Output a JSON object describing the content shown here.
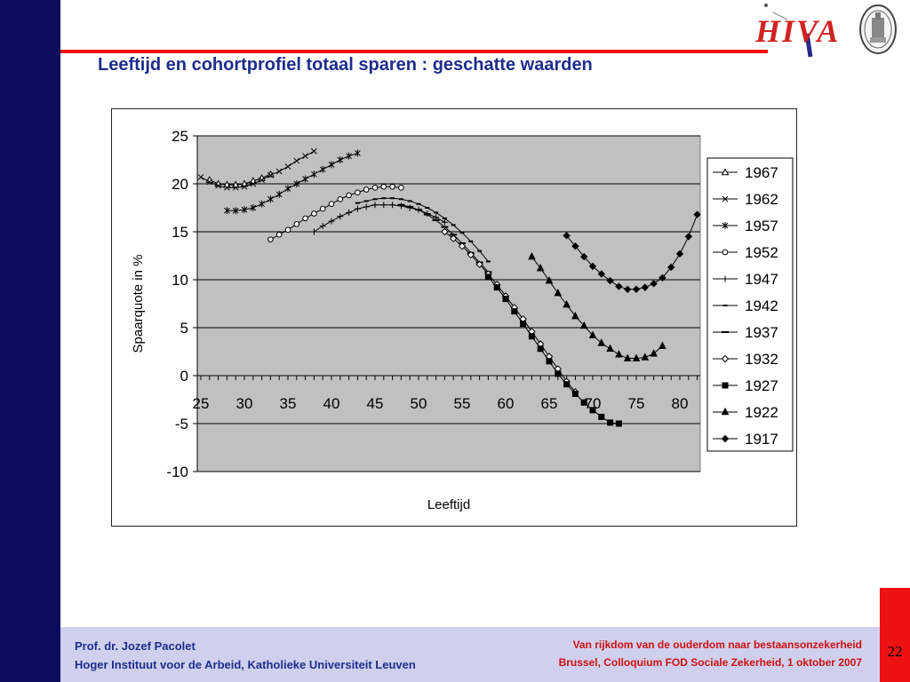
{
  "slide": {
    "title": "Leeftijd en cohortprofiel totaal sparen : geschatte waarden",
    "page_number": "22"
  },
  "logo": {
    "text": "HIVA"
  },
  "footer": {
    "left_line1": "Prof. dr. Jozef Pacolet",
    "left_line2": "Hoger Instituut voor de Arbeid, Katholieke Universiteit Leuven",
    "right_line1": "Van rijkdom van de ouderdom naar bestaansonzekerheid",
    "right_line2": "Brussel, Colloquium FOD Sociale Zekerheid, 1 oktober 2007"
  },
  "colors": {
    "accent_red": "#ee1111",
    "navy": "#0c0c5e",
    "title_blue": "#1e2d8c",
    "plot_bg": "#c0c0c0"
  },
  "chart_data": {
    "type": "line",
    "title": "",
    "xlabel": "Leeftijd",
    "ylabel": "Spaarquote in %",
    "xlim": [
      25,
      81
    ],
    "ylim": [
      -10,
      25
    ],
    "x_ticks": [
      25,
      30,
      35,
      40,
      45,
      50,
      55,
      60,
      65,
      70,
      75,
      80
    ],
    "y_ticks": [
      25,
      20,
      15,
      10,
      5,
      0,
      -5,
      -10
    ],
    "grid": "horizontal",
    "legend_position": "right",
    "series": [
      {
        "name": "1967",
        "marker": "triangle-open",
        "x": [
          26,
          27,
          28,
          29,
          30,
          31,
          32,
          33
        ],
        "y": [
          20.4,
          20.0,
          19.9,
          19.9,
          20.0,
          20.3,
          20.6,
          21.0
        ]
      },
      {
        "name": "1962",
        "marker": "x",
        "x": [
          25,
          26,
          27,
          28,
          29,
          30,
          31,
          32,
          33,
          34,
          35,
          36,
          37,
          38
        ],
        "y": [
          20.7,
          20.2,
          19.8,
          19.6,
          19.6,
          19.7,
          20.0,
          20.4,
          20.9,
          21.3,
          21.8,
          22.4,
          22.9,
          23.4
        ]
      },
      {
        "name": "1957",
        "marker": "asterisk",
        "x": [
          28,
          29,
          30,
          31,
          32,
          33,
          34,
          35,
          36,
          37,
          38,
          39,
          40,
          41,
          42,
          43
        ],
        "y": [
          17.2,
          17.2,
          17.3,
          17.5,
          17.9,
          18.4,
          18.9,
          19.5,
          20.0,
          20.5,
          21.0,
          21.5,
          22.0,
          22.5,
          22.9,
          23.2
        ]
      },
      {
        "name": "1952",
        "marker": "circle-open",
        "x": [
          33,
          34,
          35,
          36,
          37,
          38,
          39,
          40,
          41,
          42,
          43,
          44,
          45,
          46,
          47,
          48
        ],
        "y": [
          14.2,
          14.7,
          15.2,
          15.8,
          16.4,
          16.9,
          17.4,
          17.9,
          18.4,
          18.8,
          19.1,
          19.4,
          19.6,
          19.7,
          19.7,
          19.6
        ]
      },
      {
        "name": "1947",
        "marker": "plus",
        "x": [
          38,
          39,
          40,
          41,
          42,
          43,
          44,
          45,
          46,
          47,
          48,
          49,
          50,
          51,
          52,
          53
        ],
        "y": [
          15.0,
          15.6,
          16.1,
          16.6,
          17.0,
          17.4,
          17.6,
          17.8,
          17.8,
          17.8,
          17.7,
          17.5,
          17.3,
          16.9,
          16.5,
          16.0
        ]
      },
      {
        "name": "1942",
        "marker": "dash",
        "x": [
          43,
          44,
          45,
          46,
          47,
          48,
          49,
          50,
          51,
          52,
          53,
          54,
          55,
          56,
          57,
          58
        ],
        "y": [
          18.0,
          18.2,
          18.4,
          18.5,
          18.5,
          18.4,
          18.2,
          17.9,
          17.5,
          17.0,
          16.4,
          15.7,
          14.9,
          14.0,
          13.0,
          11.9
        ]
      },
      {
        "name": "1937",
        "marker": "dash-long",
        "x": [
          48,
          49,
          50,
          51,
          52,
          53,
          54,
          55,
          56,
          57,
          58
        ],
        "y": [
          17.8,
          17.6,
          17.3,
          16.8,
          16.2,
          15.5,
          14.7,
          13.8,
          12.8,
          11.8,
          10.8
        ]
      },
      {
        "name": "1932",
        "marker": "diamond-open",
        "x": [
          53,
          54,
          55,
          56,
          57,
          58,
          59,
          60,
          61,
          62,
          63,
          64,
          65,
          66,
          67,
          68
        ],
        "y": [
          15.0,
          14.3,
          13.5,
          12.6,
          11.6,
          10.6,
          9.5,
          8.3,
          7.1,
          5.9,
          4.6,
          3.3,
          2.0,
          0.7,
          -0.6,
          -1.7
        ]
      },
      {
        "name": "1927",
        "marker": "square",
        "x": [
          58,
          59,
          60,
          61,
          62,
          63,
          64,
          65,
          66,
          67,
          68,
          69,
          70,
          71,
          72,
          73
        ],
        "y": [
          10.3,
          9.2,
          8.0,
          6.7,
          5.4,
          4.1,
          2.8,
          1.5,
          0.2,
          -0.9,
          -1.9,
          -2.8,
          -3.6,
          -4.3,
          -4.9,
          -5.0
        ]
      },
      {
        "name": "1922",
        "marker": "triangle",
        "x": [
          63,
          64,
          65,
          66,
          67,
          68,
          69,
          70,
          71,
          72,
          73,
          74,
          75,
          76,
          77,
          78
        ],
        "y": [
          12.4,
          11.2,
          9.9,
          8.6,
          7.4,
          6.2,
          5.2,
          4.2,
          3.4,
          2.8,
          2.2,
          1.8,
          1.8,
          1.9,
          2.3,
          3.1
        ]
      },
      {
        "name": "1917",
        "marker": "diamond",
        "x": [
          67,
          68,
          69,
          70,
          71,
          72,
          73,
          74,
          75,
          76,
          77,
          78,
          79,
          80,
          81,
          82
        ],
        "y": [
          14.6,
          13.5,
          12.4,
          11.4,
          10.6,
          9.9,
          9.3,
          9.0,
          9.0,
          9.2,
          9.6,
          10.2,
          11.3,
          12.7,
          14.5,
          16.8
        ]
      }
    ]
  }
}
